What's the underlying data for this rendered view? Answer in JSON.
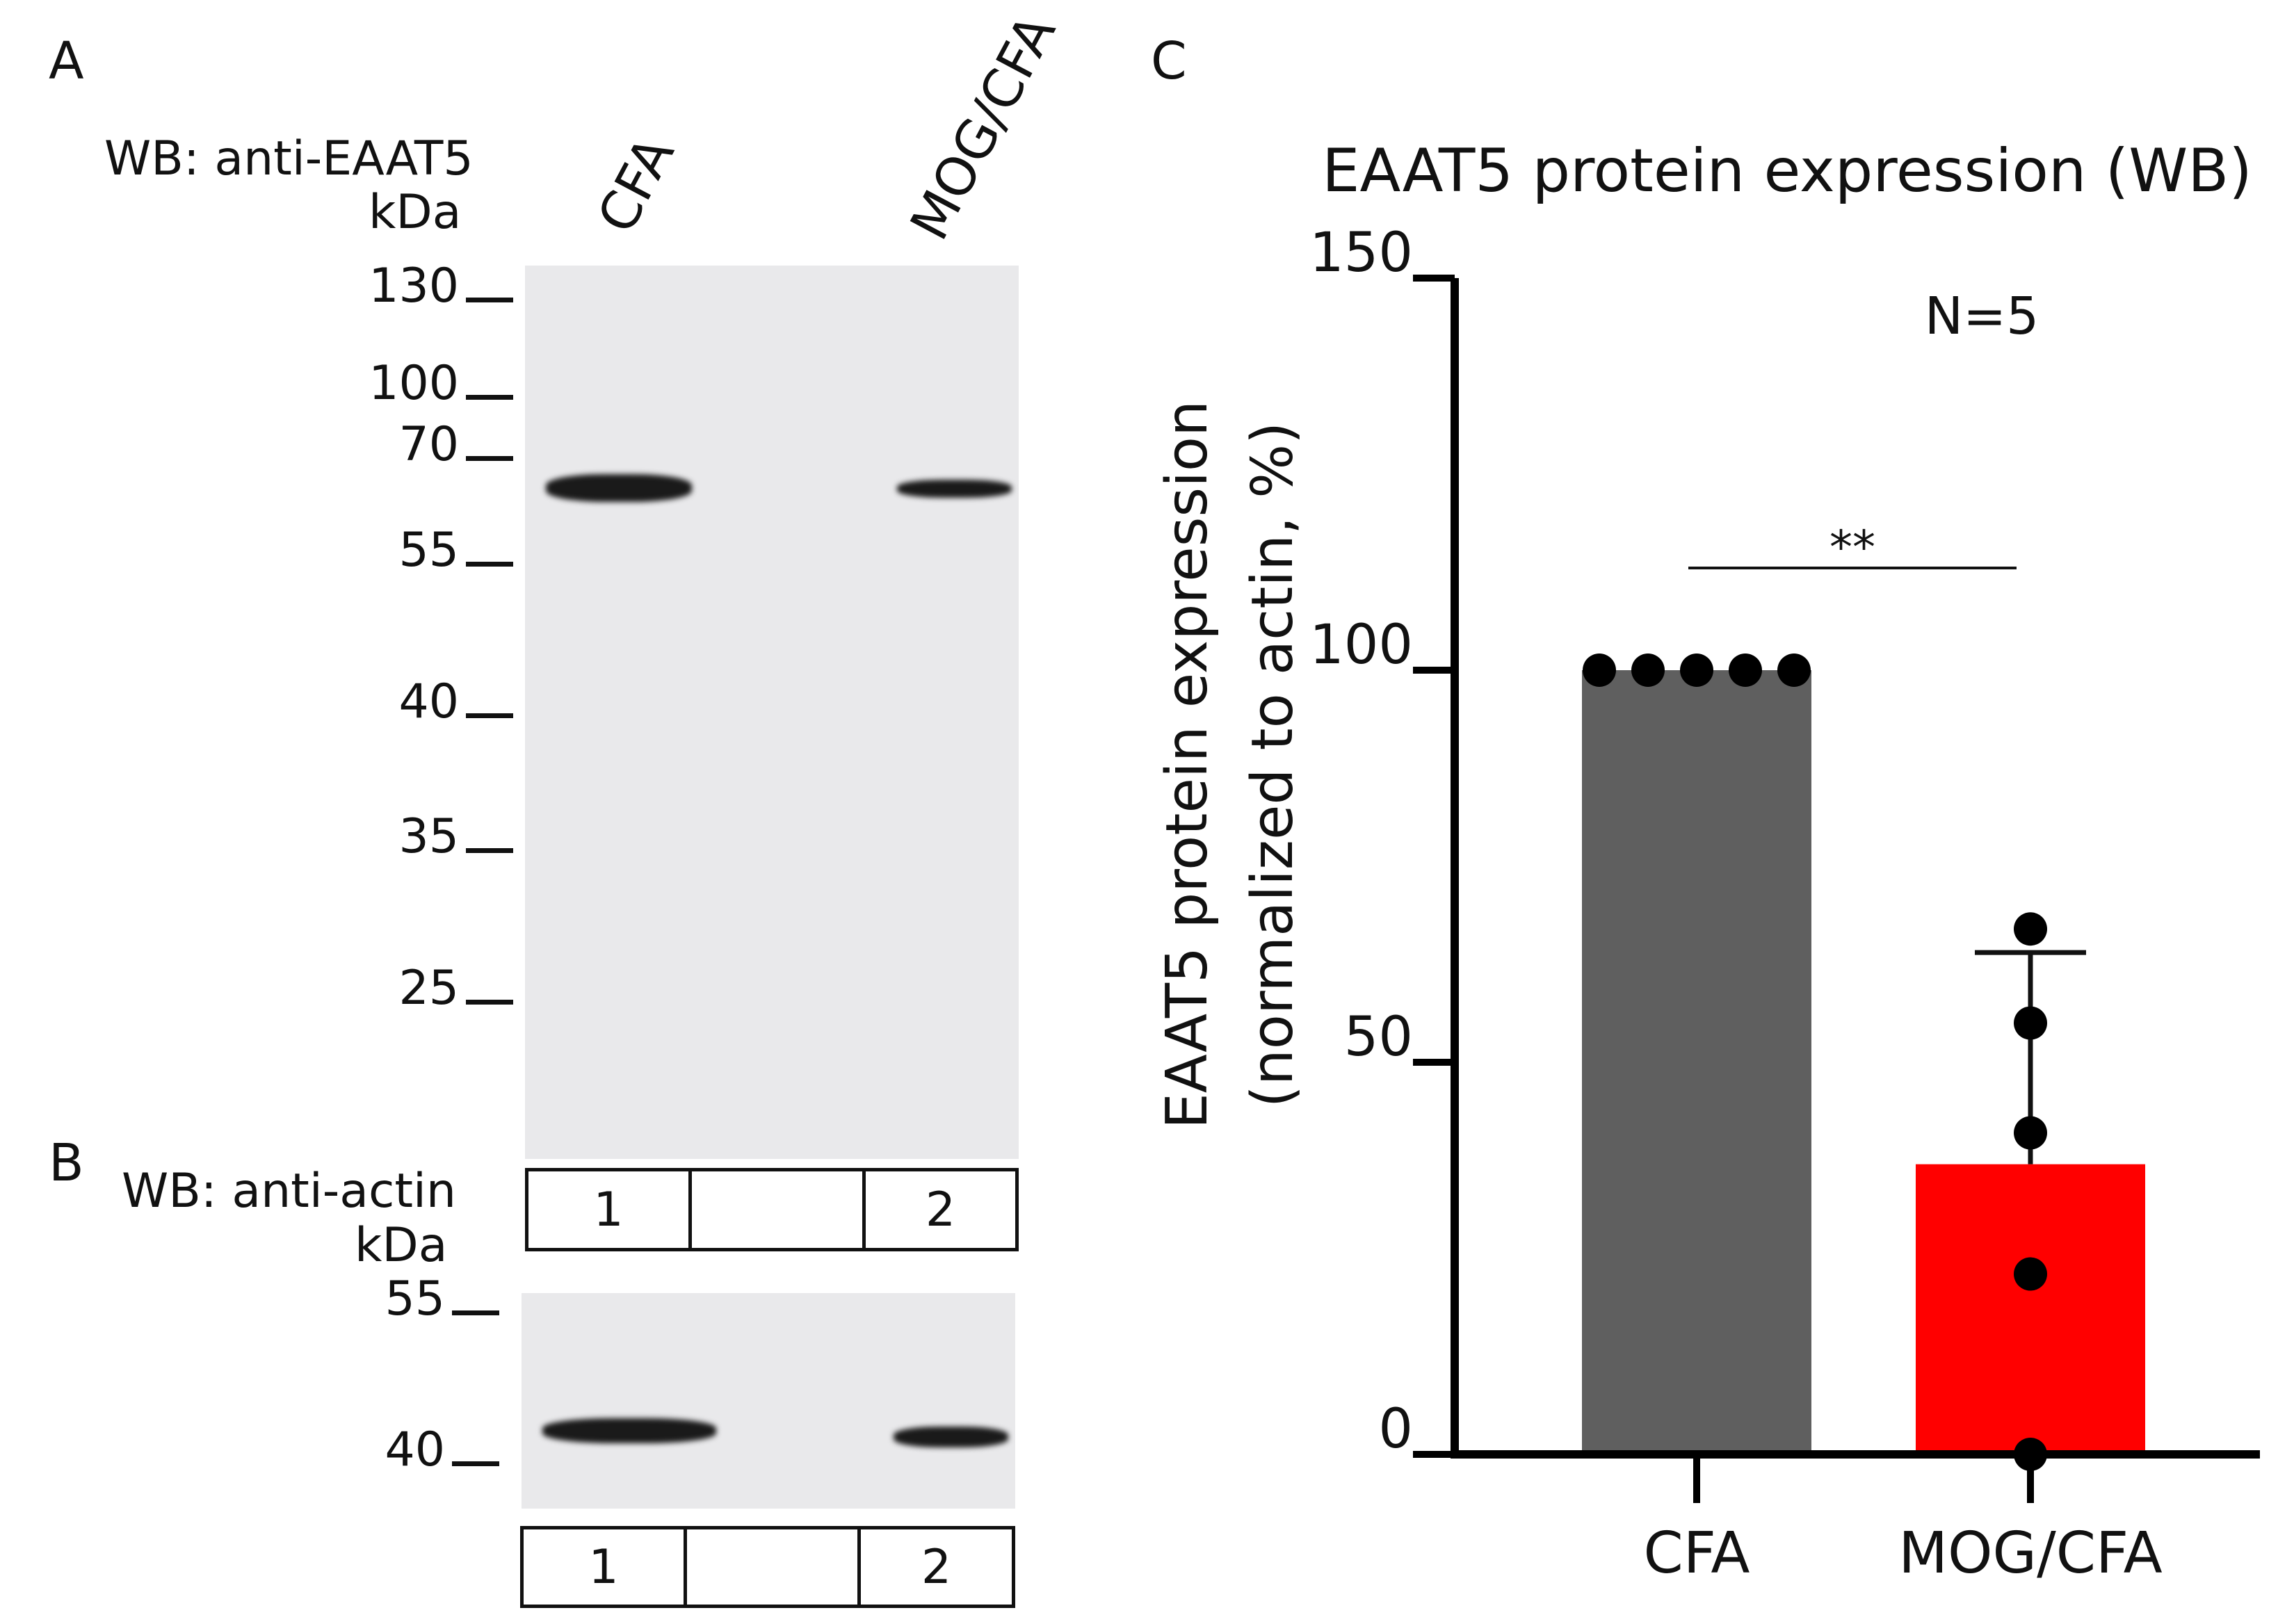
{
  "panels": {
    "a": {
      "letter": "A",
      "wb_label": "WB: anti-EAAT5",
      "kda_label": "kDa",
      "lanes": [
        "CFA",
        "MOG/CFA"
      ],
      "markers": [
        "130",
        "100",
        "70",
        "55",
        "40",
        "35",
        "25"
      ],
      "lane_numbers": [
        "1",
        "",
        "2"
      ]
    },
    "b": {
      "letter": "B",
      "wb_label": "WB: anti-actin",
      "kda_label": "kDa",
      "markers": [
        "55",
        "40"
      ],
      "lane_numbers": [
        "1",
        "",
        "2"
      ]
    },
    "c": {
      "letter": "C"
    }
  },
  "chart_data": {
    "type": "bar",
    "title": "EAAT5 protein expression (WB)",
    "ylabel_line1": "EAAT5 protein expression",
    "ylabel_line2": "(normalized to actin, %)",
    "categories": [
      "CFA",
      "MOG/CFA"
    ],
    "values": [
      100,
      37
    ],
    "error_upper": [
      null,
      64
    ],
    "points": [
      [
        100,
        100,
        100,
        100,
        100
      ],
      [
        67,
        55,
        41,
        23,
        0
      ]
    ],
    "colors": [
      "#5f5f5f",
      "#ff0000"
    ],
    "ylim": [
      0,
      150
    ],
    "yticks": [
      "0",
      "50",
      "100",
      "150"
    ],
    "annotation_n": "N=5",
    "significance": "**"
  }
}
